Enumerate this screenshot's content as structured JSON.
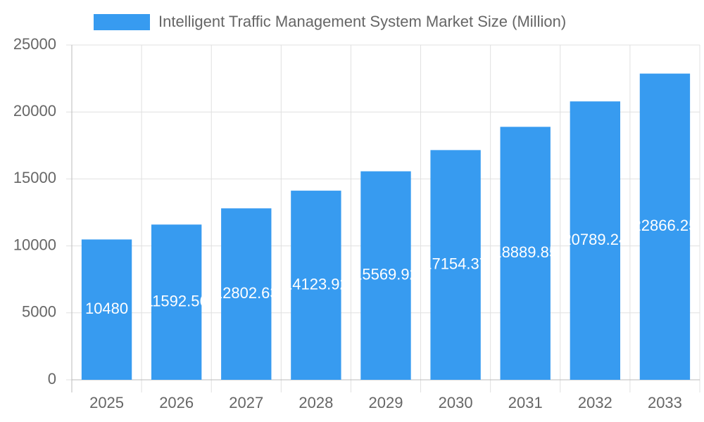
{
  "chart_data": {
    "type": "bar",
    "legend": "Intelligent Traffic Management System Market Size (Million)",
    "categories": [
      "2025",
      "2026",
      "2027",
      "2028",
      "2029",
      "2030",
      "2031",
      "2032",
      "2033"
    ],
    "values": [
      10480,
      11592.56,
      12802.63,
      14123.92,
      15569.92,
      17154.37,
      18889.85,
      20789.24,
      22866.25
    ],
    "color": "#379bf0",
    "ylim": [
      0,
      25000
    ],
    "yticks": [
      0,
      5000,
      10000,
      15000,
      20000,
      25000
    ],
    "grid": true
  }
}
